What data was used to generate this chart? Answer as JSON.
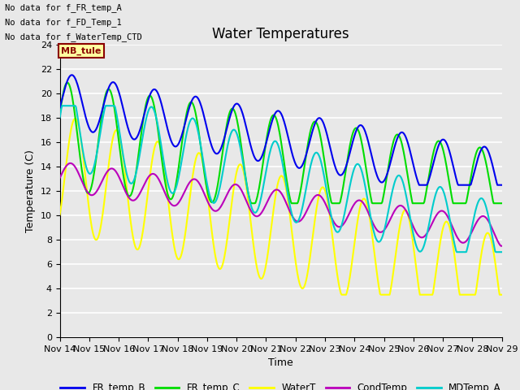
{
  "title": "Water Temperatures",
  "xlabel": "Time",
  "ylabel": "Temperature (C)",
  "ylim": [
    0,
    24
  ],
  "yticks": [
    0,
    2,
    4,
    6,
    8,
    10,
    12,
    14,
    16,
    18,
    20,
    22,
    24
  ],
  "xtick_labels": [
    "Nov 14",
    "Nov 15",
    "Nov 16",
    "Nov 17",
    "Nov 18",
    "Nov 19",
    "Nov 20",
    "Nov 21",
    "Nov 22",
    "Nov 23",
    "Nov 24",
    "Nov 25",
    "Nov 26",
    "Nov 27",
    "Nov 28",
    "Nov 29"
  ],
  "no_data_texts": [
    "No data for f_FR_temp_A",
    "No data for f_FD_Temp_1",
    "No data for f_WaterTemp_CTD"
  ],
  "mb_tule_label": "MB_tule",
  "series": {
    "FR_temp_B": {
      "color": "#0000EE",
      "linewidth": 1.5
    },
    "FR_temp_C": {
      "color": "#00DD00",
      "linewidth": 1.5
    },
    "WaterT": {
      "color": "#FFFF00",
      "linewidth": 1.5
    },
    "CondTemp": {
      "color": "#BB00BB",
      "linewidth": 1.5
    },
    "MDTemp_A": {
      "color": "#00CCCC",
      "linewidth": 1.5
    }
  },
  "background_color": "#E8E8E8",
  "grid_color": "#FFFFFF",
  "title_fontsize": 12,
  "axis_fontsize": 9,
  "tick_fontsize": 8,
  "legend_fontsize": 8.5
}
